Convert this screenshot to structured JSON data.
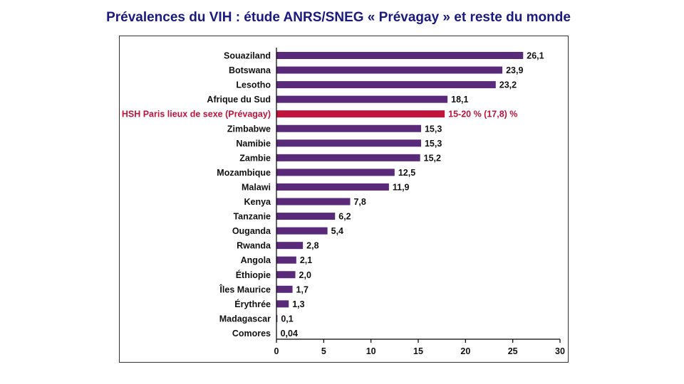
{
  "slide": {
    "title": "Prévalences du VIH : étude ANRS/SNEG « Prévagay » et reste du monde"
  },
  "colors": {
    "title": "#1a1a80",
    "bar": "#5a2a7a",
    "highlight": "#c0143c"
  },
  "chart_data": {
    "type": "bar",
    "orientation": "horizontal",
    "title": "",
    "xlabel": "",
    "ylabel": "",
    "xlim": [
      0,
      30
    ],
    "x_ticks": [
      "0",
      "5",
      "10",
      "15",
      "20",
      "25",
      "30"
    ],
    "grid": false,
    "categories": [
      "Souaziland",
      "Botswana",
      "Lesotho",
      "Afrique du Sud",
      "HSH Paris lieux de sexe (Prévagay)",
      "Zimbabwe",
      "Namibie",
      "Zambie",
      "Mozambique",
      "Malawi",
      "Kenya",
      "Tanzanie",
      "Ouganda",
      "Rwanda",
      "Angola",
      "Éthiopie",
      "Îles Maurice",
      "Érythrée",
      "Madagascar",
      "Comores"
    ],
    "values": [
      26.1,
      23.9,
      23.2,
      18.1,
      17.8,
      15.3,
      15.3,
      15.2,
      12.5,
      11.9,
      7.8,
      6.2,
      5.4,
      2.8,
      2.1,
      2.0,
      1.7,
      1.3,
      0.1,
      0.04
    ],
    "value_labels": [
      "26,1",
      "23,9",
      "23,2",
      "18,1",
      "15-20 % (17,8) %",
      "15,3",
      "15,3",
      "15,2",
      "12,5",
      "11,9",
      "7,8",
      "6,2",
      "5,4",
      "2,8",
      "2,1",
      "2,0",
      "1,7",
      "1,3",
      "0,1",
      "0,04"
    ],
    "highlight_index": 4
  }
}
